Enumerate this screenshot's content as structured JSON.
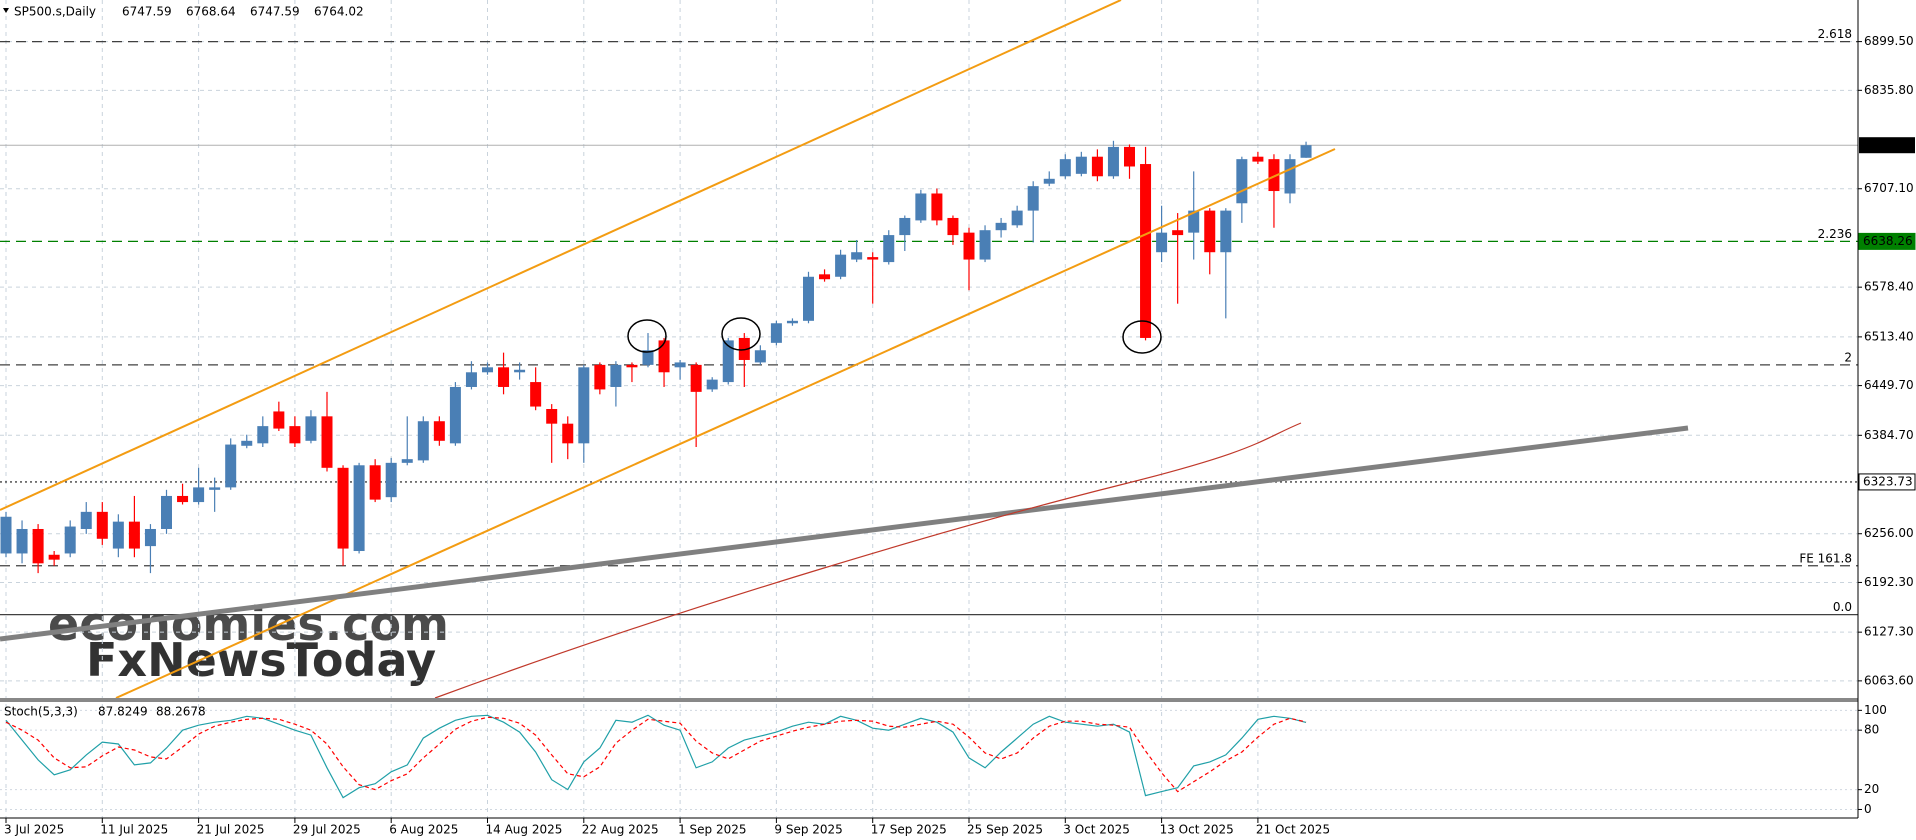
{
  "chart_data": [
    {
      "type": "candlestick",
      "title": "SP500.s,Daily",
      "categories": [
        "3 Jul 2025",
        null,
        null,
        null,
        null,
        null,
        "11 Jul 2025",
        null,
        null,
        null,
        null,
        null,
        "21 Jul 2025",
        null,
        null,
        null,
        null,
        null,
        "29 Jul 2025",
        null,
        null,
        null,
        null,
        null,
        "6 Aug 2025",
        null,
        null,
        null,
        null,
        null,
        "14 Aug 2025",
        null,
        null,
        null,
        null,
        null,
        "22 Aug 2025",
        null,
        null,
        null,
        null,
        null,
        "1 Sep 2025",
        null,
        null,
        null,
        null,
        null,
        "9 Sep 2025",
        null,
        null,
        null,
        null,
        null,
        "17 Sep 2025",
        null,
        null,
        null,
        null,
        null,
        "25 Sep 2025",
        null,
        null,
        null,
        null,
        null,
        "3 Oct 2025",
        null,
        null,
        null,
        null,
        null,
        "13 Oct 2025",
        null,
        null,
        null,
        null,
        null,
        "21 Oct 2025",
        null,
        null,
        null
      ],
      "open": [
        6230.2,
        6230.2,
        6262.2,
        6228.5,
        6230.2,
        6262.2,
        6284.6,
        6236.6,
        6271.8,
        6239.8,
        6262.2,
        6305.4,
        6297.4,
        6313.4,
        6316.6,
        6371.0,
        6374.2,
        6415.9,
        6396.7,
        6377.5,
        6409.5,
        6342.2,
        6233.4,
        6345.5,
        6303.8,
        6348.7,
        6351.9,
        6403.1,
        6374.2,
        6447.9,
        6467.1,
        6473.6,
        6467.1,
        6454.3,
        6419.1,
        6399.9,
        6374.2,
        6476.8,
        6447.9,
        6476.8,
        6476.8,
        6508.8,
        6473.6,
        6476.8,
        6444.7,
        6454.3,
        6512.0,
        6480.0,
        6505.6,
        6531.2,
        6534.4,
        6595.2,
        6592.0,
        6614.5,
        6617.7,
        6611.2,
        6646.5,
        6665.7,
        6700.9,
        6668.9,
        6649.7,
        6614.5,
        6652.9,
        6659.3,
        6678.5,
        6713.7,
        6723.4,
        6726.6,
        6749.0,
        6723.4,
        6761.8,
        6739.4,
        6624.1,
        6652.9,
        6649.7,
        6678.5,
        6624.1,
        6688.1,
        6749.0,
        6745.8,
        6700.9,
        6747.59
      ],
      "high": [
        6284.6,
        6273.4,
        6268.6,
        6233.4,
        6273.4,
        6297.4,
        6297.4,
        6281.4,
        6305.4,
        6268.6,
        6313.4,
        6321.4,
        6342.2,
        6329.4,
        6380.7,
        6385.5,
        6409.5,
        6428.7,
        6409.5,
        6417.5,
        6441.5,
        6345.5,
        6348.7,
        6353.5,
        6355.1,
        6409.5,
        6409.5,
        6409.5,
        6454.3,
        6481.6,
        6480.0,
        6492.8,
        6480.0,
        6473.6,
        6425.5,
        6409.5,
        6476.8,
        6480.0,
        6481.6,
        6480.0,
        6518.4,
        6512.0,
        6483.2,
        6480.0,
        6460.7,
        6512.0,
        6518.4,
        6502.4,
        6534.4,
        6537.6,
        6598.5,
        6601.7,
        6627.3,
        6640.1,
        6624.1,
        6652.9,
        6672.1,
        6705.7,
        6707.3,
        6672.1,
        6656.1,
        6659.3,
        6668.9,
        6684.9,
        6716.9,
        6729.8,
        6752.2,
        6755.4,
        6758.6,
        6769.8,
        6765.0,
        6761.8,
        6684.9,
        6675.3,
        6729.8,
        6681.7,
        6681.7,
        6749.0,
        6755.4,
        6752.2,
        6752.2,
        6768.64
      ],
      "low": [
        6225.3,
        6217.3,
        6204.5,
        6214.1,
        6225.3,
        6255.8,
        6241.4,
        6225.3,
        6225.3,
        6204.5,
        6255.8,
        6294.2,
        6294.2,
        6284.6,
        6313.4,
        6367.8,
        6369.4,
        6390.3,
        6369.4,
        6374.2,
        6337.4,
        6214.1,
        6230.2,
        6297.4,
        6297.4,
        6345.5,
        6348.7,
        6371.0,
        6371.0,
        6444.7,
        6463.9,
        6438.3,
        6457.5,
        6417.5,
        6348.7,
        6353.5,
        6348.7,
        6438.3,
        6422.3,
        6454.3,
        6473.6,
        6447.9,
        6457.5,
        6369.4,
        6441.5,
        6451.1,
        6447.9,
        6476.8,
        6502.4,
        6528.0,
        6531.2,
        6585.6,
        6588.8,
        6611.2,
        6556.8,
        6608.0,
        6625.7,
        6662.5,
        6659.3,
        6633.7,
        6574.4,
        6611.2,
        6643.3,
        6656.1,
        6636.9,
        6710.5,
        6720.1,
        6723.4,
        6716.9,
        6720.1,
        6720.1,
        6508.8,
        6611.2,
        6556.8,
        6614.5,
        6595.2,
        6537.6,
        6662.5,
        6739.4,
        6656.1,
        6688.1,
        6747.59
      ],
      "close": [
        6278.2,
        6262.2,
        6217.3,
        6222.1,
        6265.4,
        6284.6,
        6249.4,
        6271.8,
        6236.6,
        6262.2,
        6305.4,
        6297.4,
        6316.6,
        6316.6,
        6372.6,
        6377.5,
        6396.7,
        6393.5,
        6374.2,
        6409.5,
        6342.2,
        6236.6,
        6345.5,
        6300.6,
        6348.7,
        6353.5,
        6403.1,
        6377.5,
        6447.9,
        6467.1,
        6473.6,
        6447.9,
        6470.4,
        6422.3,
        6399.9,
        6374.2,
        6473.6,
        6444.7,
        6476.8,
        6473.6,
        6495.9,
        6467.1,
        6480.0,
        6441.5,
        6457.5,
        6508.8,
        6483.2,
        6495.9,
        6531.2,
        6534.4,
        6592.0,
        6588.8,
        6620.9,
        6624.1,
        6614.5,
        6646.5,
        6668.9,
        6700.9,
        6665.7,
        6646.5,
        6614.5,
        6652.9,
        6662.5,
        6678.5,
        6710.5,
        6720.1,
        6745.8,
        6749.0,
        6723.4,
        6761.8,
        6736.2,
        6512.0,
        6649.7,
        6646.5,
        6678.5,
        6624.1,
        6678.5,
        6745.8,
        6742.6,
        6704.1,
        6745.8,
        6764.02
      ],
      "up_color": "#4a7fb5",
      "down_color": "#ff0000",
      "ylim": [
        6041.2,
        6953.9
      ],
      "yticks": [
        {
          "value": 6899.5,
          "label": "6899.50"
        },
        {
          "value": 6835.8,
          "label": "6835.80"
        },
        {
          "value": 6707.1,
          "label": "6707.10"
        },
        {
          "value": 6578.4,
          "label": "6578.40"
        },
        {
          "value": 6513.4,
          "label": "6513.40"
        },
        {
          "value": 6449.7,
          "label": "6449.70"
        },
        {
          "value": 6384.7,
          "label": "6384.70"
        },
        {
          "value": 6256.0,
          "label": "6256.00"
        },
        {
          "value": 6192.3,
          "label": "6192.30"
        },
        {
          "value": 6127.3,
          "label": "6127.30"
        },
        {
          "value": 6063.6,
          "label": "6063.60"
        }
      ],
      "grid": true,
      "levels": [
        {
          "label": "2.618",
          "value": 6899.5,
          "style": "dashed",
          "color": "#404040"
        },
        {
          "label": "2.236",
          "value": 6638.26,
          "style": "dashed",
          "color": "#008000",
          "axis_box": true
        },
        {
          "label": "2",
          "value": 6476.8,
          "style": "dashed",
          "color": "#404040"
        },
        {
          "value": 6323.73,
          "style": "dotted",
          "color": "#404040",
          "axis_box": true
        },
        {
          "label": "FE 161.8",
          "value": 6214.1,
          "style": "dashed",
          "color": "#404040"
        },
        {
          "label": "0.0",
          "value": 6150.2,
          "style": "solid",
          "color": "#404040"
        }
      ]
    },
    {
      "type": "line",
      "title": "Stoch(5,3,3)",
      "series": [
        {
          "color": "#20a0a8",
          "dash": false,
          "values": [
            90,
            70,
            50,
            35,
            40,
            55,
            68,
            66,
            45,
            47,
            62,
            80,
            85,
            88,
            90,
            94,
            92,
            86,
            80,
            75,
            42,
            12,
            22,
            26,
            38,
            45,
            72,
            82,
            90,
            94,
            95,
            88,
            78,
            58,
            30,
            20,
            48,
            62,
            90,
            88,
            95,
            85,
            80,
            42,
            48,
            62,
            70,
            74,
            78,
            84,
            88,
            86,
            94,
            90,
            82,
            80,
            86,
            92,
            88,
            78,
            52,
            42,
            58,
            72,
            86,
            94,
            88,
            86,
            84,
            86,
            78,
            14,
            18,
            22,
            44,
            48,
            55,
            72,
            91,
            94,
            92,
            87.8249
          ]
        },
        {
          "color": "#ff0000",
          "dash": true,
          "values": [
            88,
            80,
            70,
            52,
            42,
            43,
            54,
            63,
            60,
            53,
            51,
            63,
            76,
            84,
            88,
            91,
            92,
            91,
            86,
            80,
            66,
            43,
            25,
            20,
            29,
            36,
            52,
            66,
            81,
            89,
            93,
            92,
            87,
            75,
            55,
            36,
            33,
            43,
            67,
            80,
            91,
            89,
            87,
            69,
            57,
            51,
            60,
            69,
            74,
            79,
            83,
            86,
            89,
            90,
            89,
            84,
            83,
            86,
            89,
            86,
            73,
            57,
            51,
            57,
            72,
            84,
            89,
            89,
            86,
            85,
            83,
            59,
            37,
            18,
            28,
            38,
            49,
            58,
            73,
            86,
            92,
            88.2678
          ]
        }
      ],
      "ylim": [
        -8.6,
        107.4
      ],
      "yticks": [
        0,
        20,
        80,
        100
      ]
    }
  ],
  "watermark": [
    "economies.com",
    "FxNewsToday"
  ]
}
